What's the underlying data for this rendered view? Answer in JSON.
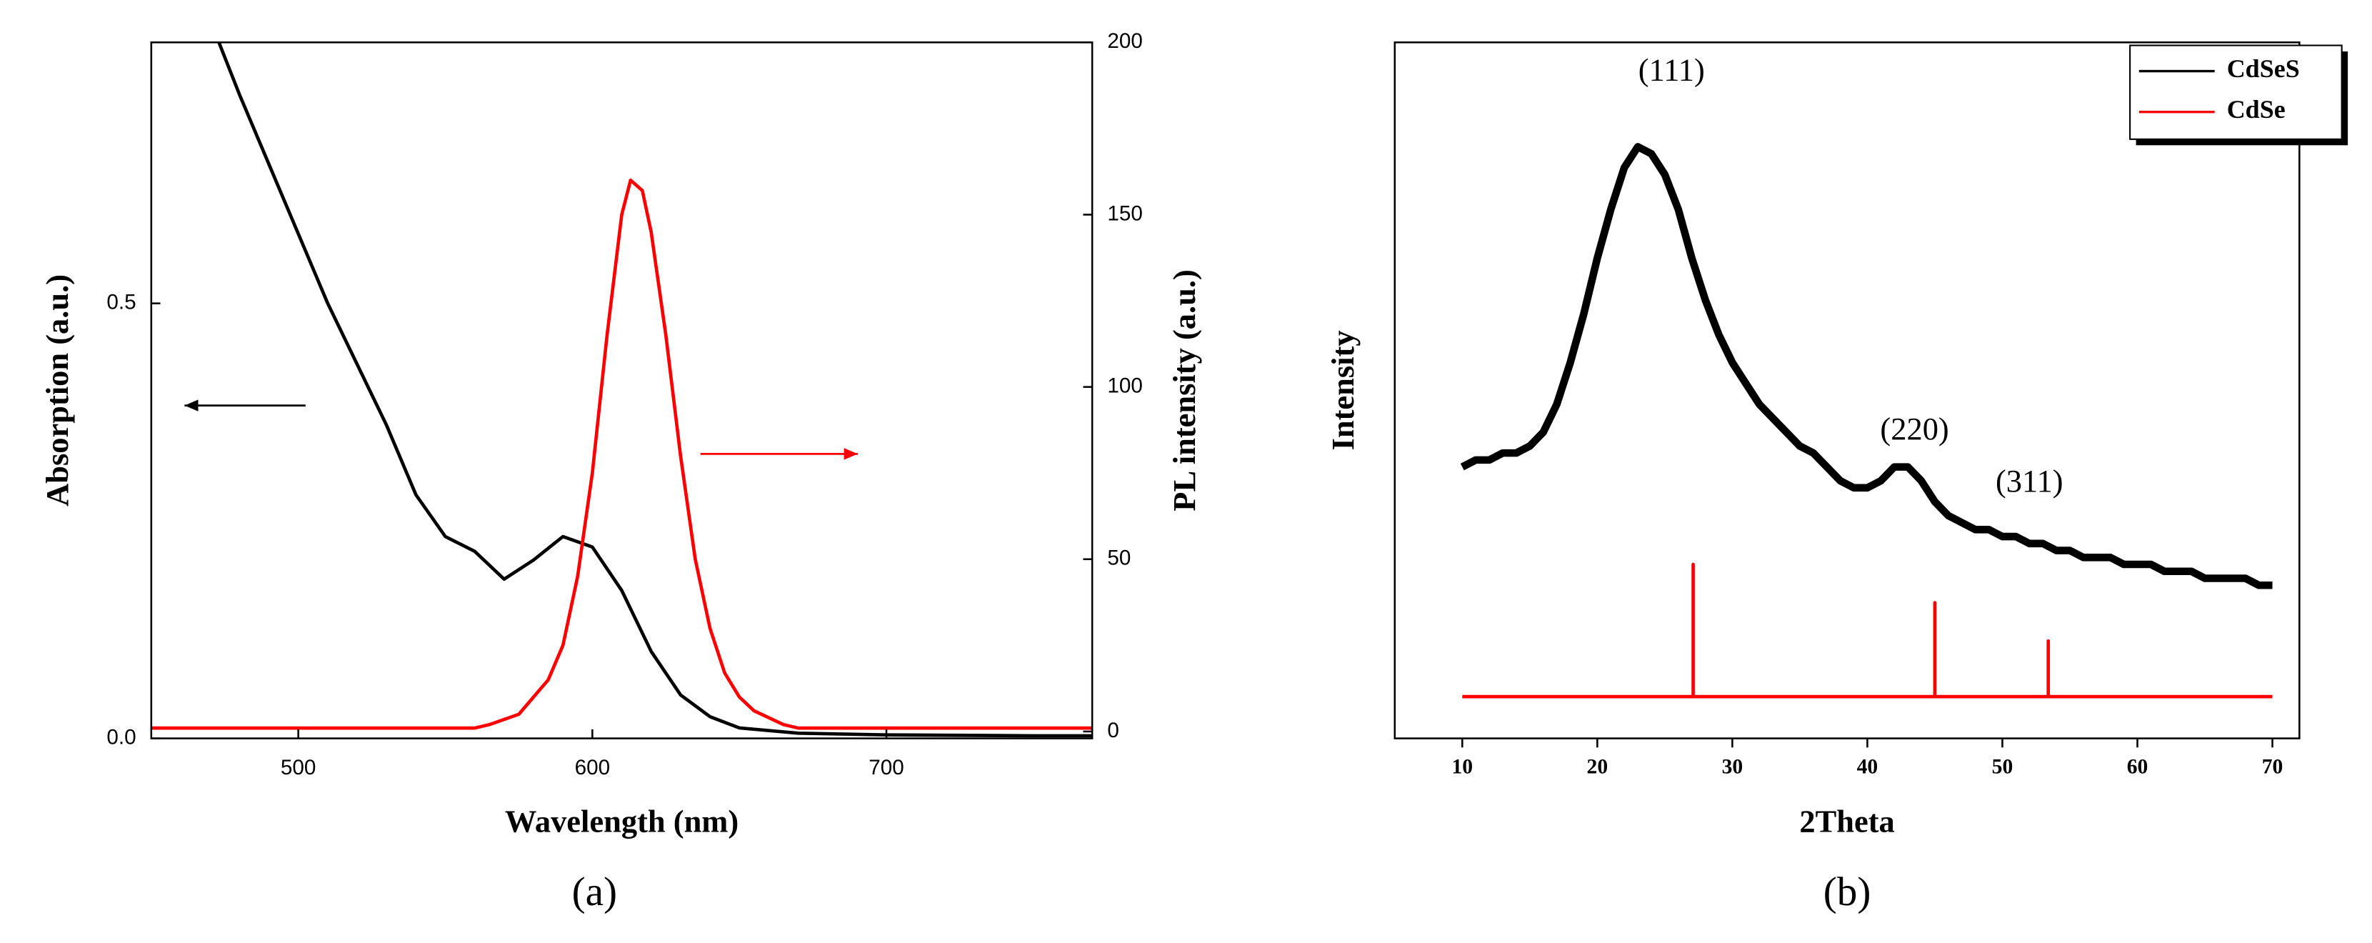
{
  "chart_data": [
    {
      "type": "line",
      "caption": "(a)",
      "xlabel": "Wavelength (nm)",
      "ylabel": "Absorption (a.u.)",
      "y2label": "PL intensity (a.u.)",
      "xlim": [
        450,
        770
      ],
      "xticks": [
        500,
        600,
        700
      ],
      "ylim": [
        0,
        0.8
      ],
      "yticks": [
        {
          "value": 0,
          "label": "0.0"
        },
        0.5
      ],
      "y2lim": [
        -2,
        200
      ],
      "y2ticks": [
        0,
        50,
        100,
        150,
        200
      ],
      "series": [
        {
          "color": "#000000",
          "x": [
            473,
            480,
            490,
            500,
            510,
            520,
            530,
            540,
            550,
            560,
            570,
            580,
            590,
            600,
            610,
            620,
            630,
            640,
            650,
            670,
            700,
            750,
            770
          ],
          "values": [
            0.8,
            0.74,
            0.66,
            0.58,
            0.5,
            0.43,
            0.36,
            0.28,
            0.232,
            0.215,
            0.183,
            0.205,
            0.232,
            0.22,
            0.17,
            0.1,
            0.05,
            0.025,
            0.012,
            0.006,
            0.004,
            0.003,
            0.003
          ]
        },
        {
          "color": "#ff0000",
          "axis": "y2",
          "x": [
            450,
            500,
            560,
            565,
            575,
            585,
            590,
            595,
            600,
            605,
            610,
            613,
            617,
            620,
            625,
            630,
            635,
            640,
            645,
            650,
            655,
            660,
            665,
            670,
            700,
            770
          ],
          "values": [
            1,
            1,
            1,
            2,
            5,
            15,
            25,
            45,
            75,
            115,
            150,
            160,
            157,
            145,
            115,
            80,
            50,
            30,
            17,
            10,
            6,
            4,
            2,
            1,
            1,
            1
          ]
        }
      ]
    },
    {
      "type": "line",
      "caption": "(b)",
      "xlabel": "2Theta",
      "ylabel": "Intensity",
      "xlim": [
        5,
        72
      ],
      "xticks": [
        10,
        20,
        30,
        40,
        50,
        60,
        70
      ],
      "ylim": [
        0,
        100
      ],
      "legend": "upper right",
      "annotations": [
        {
          "text": "(111)",
          "x": 25.5,
          "y": 95.6
        },
        {
          "text": "(220)",
          "x": 43.5,
          "y": 44
        },
        {
          "text": "(311)",
          "x": 52,
          "y": 36.5
        }
      ],
      "series": [
        {
          "name": "CdSeS",
          "color": "#000000",
          "x": [
            10,
            11,
            12,
            13,
            14,
            15,
            16,
            17,
            18,
            19,
            20,
            21,
            22,
            23,
            24,
            25,
            26,
            27,
            28,
            29,
            30,
            31,
            32,
            33,
            34,
            35,
            36,
            37,
            38,
            39,
            40,
            41,
            42,
            43,
            44,
            45,
            46,
            47,
            48,
            49,
            50,
            51,
            52,
            53,
            54,
            55,
            56,
            57,
            58,
            59,
            60,
            61,
            62,
            63,
            64,
            65,
            66,
            67,
            68,
            69,
            70
          ],
          "values": [
            39,
            40,
            40,
            41,
            41,
            42,
            44,
            48,
            54,
            61,
            69,
            76,
            82,
            85,
            84,
            81,
            76,
            69,
            63,
            58,
            54,
            51,
            48,
            46,
            44,
            42,
            41,
            39,
            37,
            36,
            36,
            37,
            39,
            39,
            37,
            34,
            32,
            31,
            30,
            30,
            29,
            29,
            28,
            28,
            27,
            27,
            26,
            26,
            26,
            25,
            25,
            25,
            24,
            24,
            24,
            23,
            23,
            23,
            23,
            22,
            22
          ]
        },
        {
          "name": "CdSe",
          "color": "#ff0000",
          "x": [
            10,
            27.1,
            27.1,
            27.1,
            45,
            45,
            45,
            53.4,
            53.4,
            53.4,
            70
          ],
          "values": [
            6,
            6,
            25,
            6,
            6,
            19.5,
            6,
            6,
            14,
            6,
            6
          ]
        }
      ]
    }
  ]
}
